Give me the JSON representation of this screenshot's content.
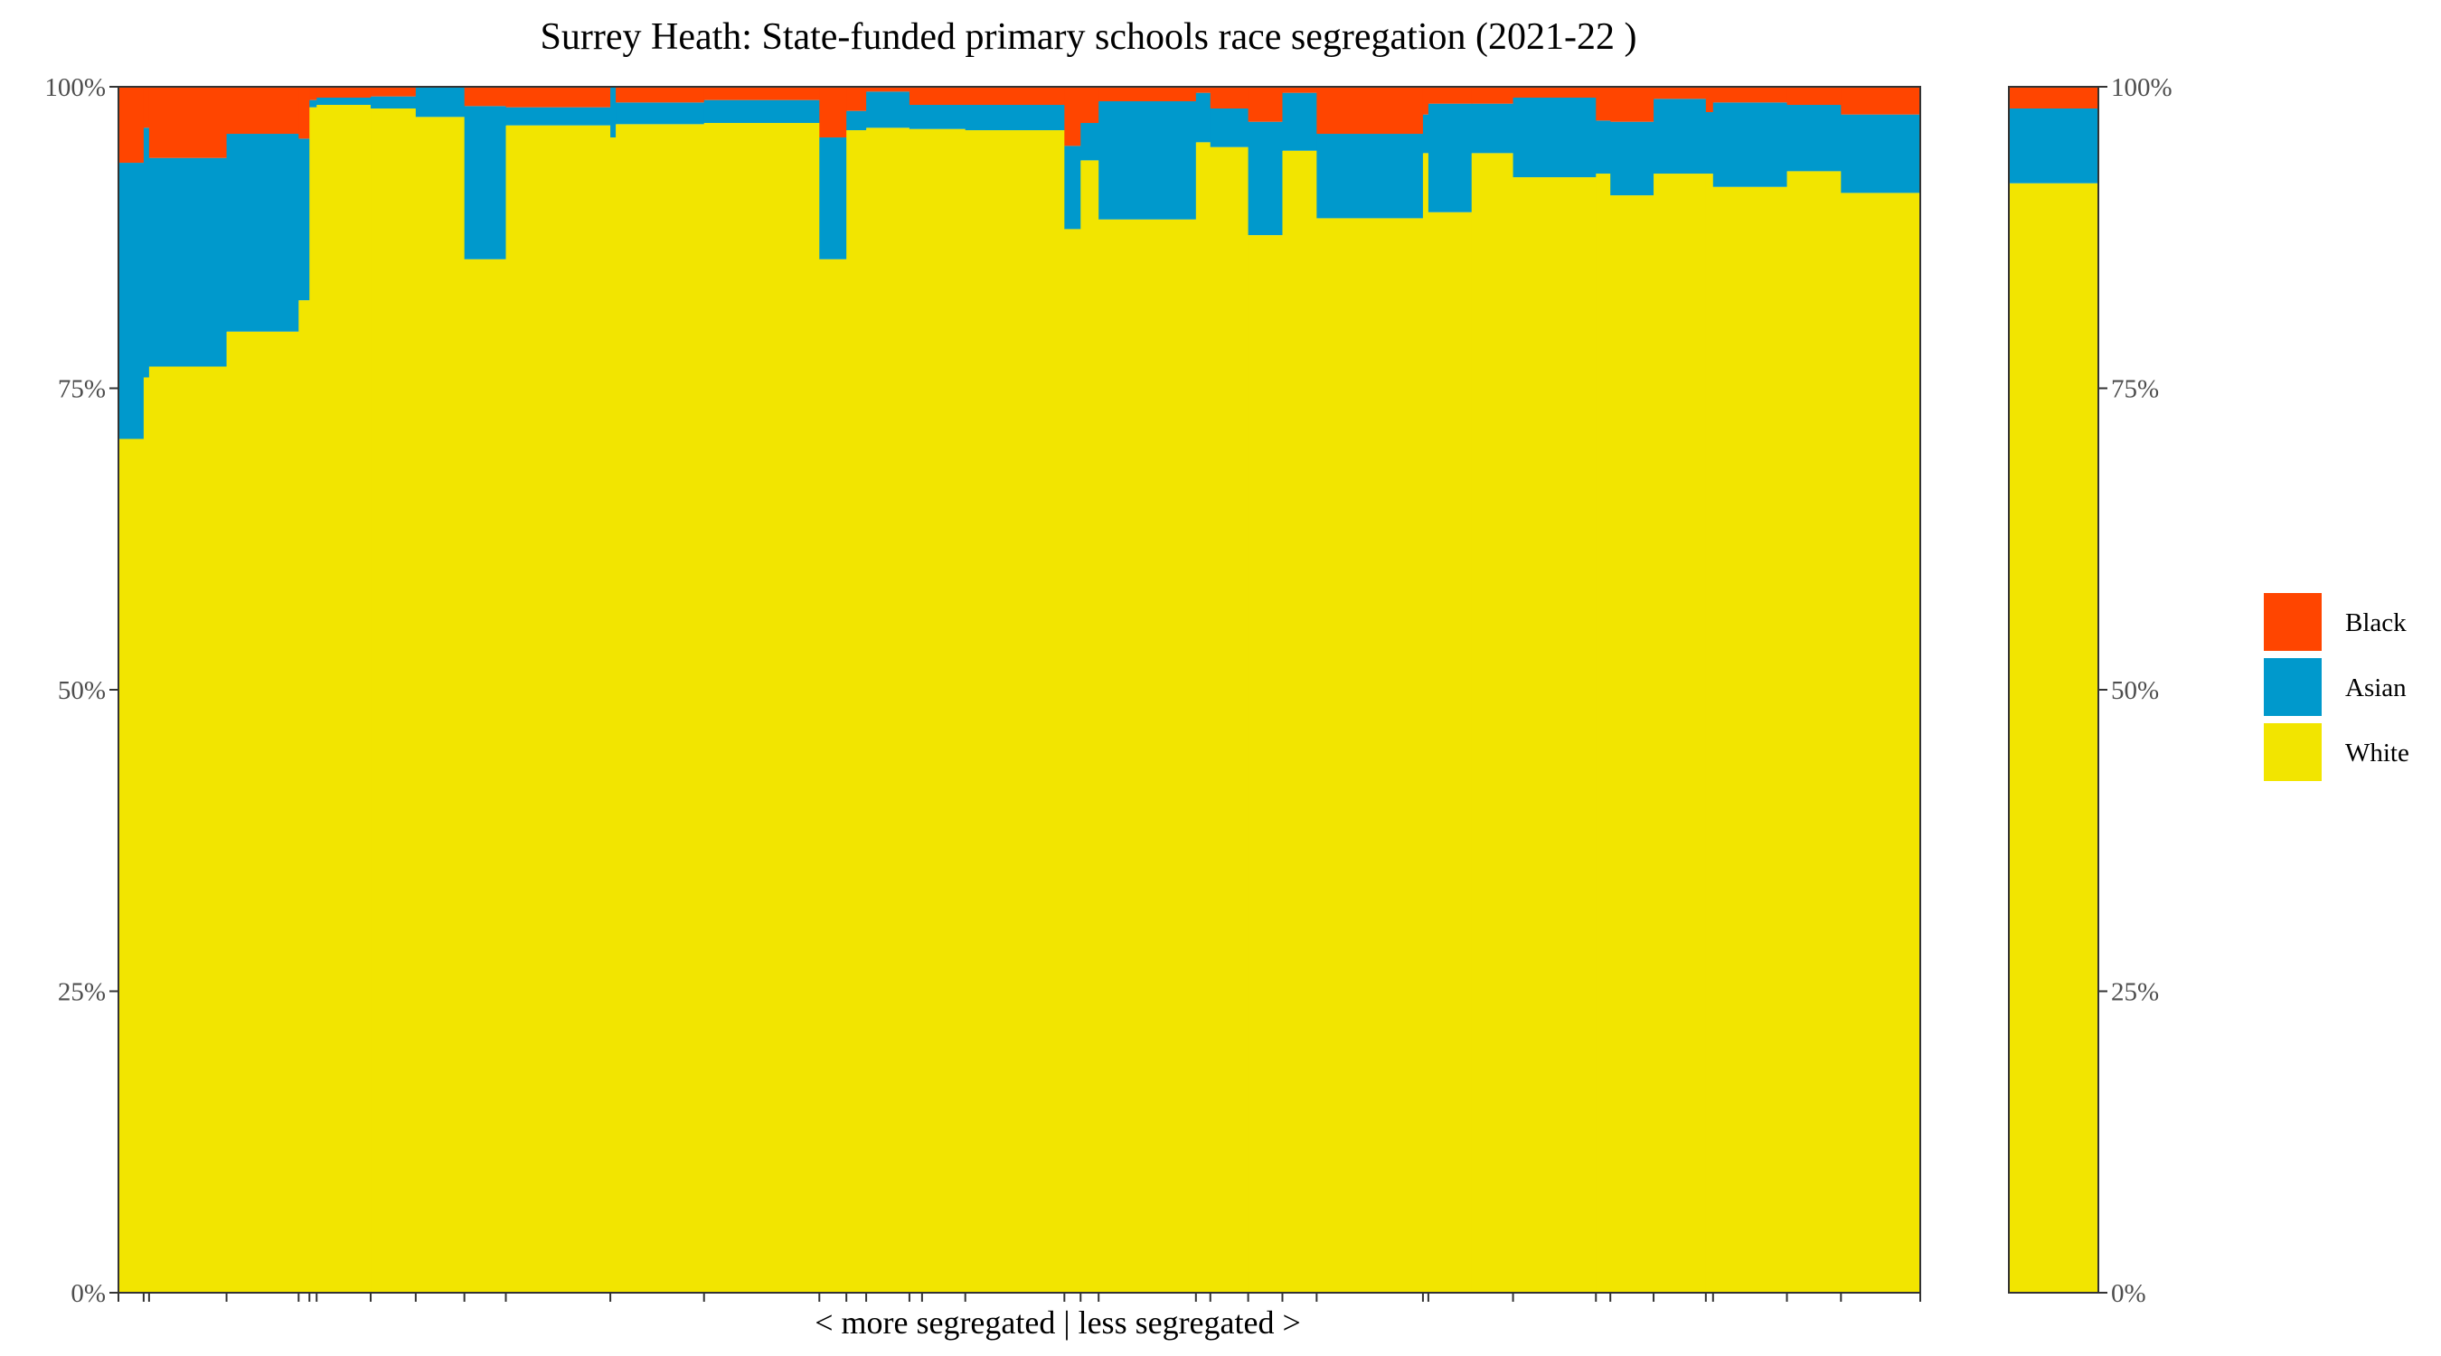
{
  "chart_data": {
    "type": "bar",
    "subtype": "stacked-variable-width-100-percent",
    "title": "Surrey Heath: State-funded primary schools race segregation (2021-22 )",
    "xlabel": "< more segregated | less segregated >",
    "ylabel": "",
    "ylim": [
      0,
      100
    ],
    "y_ticks": [
      "0%",
      "25%",
      "50%",
      "75%",
      "100%"
    ],
    "y_tick_values": [
      0,
      25,
      50,
      75,
      100
    ],
    "right_axis": true,
    "grid": false,
    "legend_position": "right",
    "colors": {
      "Black": "#FF4500",
      "Asian": "#0099CC",
      "White": "#F2E500"
    },
    "legend": [
      "Black",
      "Asian",
      "White"
    ],
    "stack_order": [
      "White",
      "Asian",
      "Black"
    ],
    "x_range": [
      0,
      100
    ],
    "series_note": "each bar: x start, x end (share of pupils, %), and White / Asian / Black percentages; remainder is unshaded",
    "bars": [
      {
        "x0": 0.0,
        "x1": 1.4,
        "White": 70.8,
        "Asian": 22.9,
        "Black": 6.3
      },
      {
        "x0": 1.4,
        "x1": 1.7,
        "White": 75.9,
        "Asian": 20.7,
        "Black": 3.4
      },
      {
        "x0": 1.7,
        "x1": 6.0,
        "White": 76.8,
        "Asian": 17.3,
        "Black": 5.9
      },
      {
        "x0": 6.0,
        "x1": 10.0,
        "White": 79.7,
        "Asian": 16.4,
        "Black": 3.9
      },
      {
        "x0": 10.0,
        "x1": 10.6,
        "White": 82.3,
        "Asian": 13.4,
        "Black": 4.3
      },
      {
        "x0": 10.6,
        "x1": 11.0,
        "White": 98.3,
        "Asian": 0.6,
        "Black": 1.1
      },
      {
        "x0": 11.0,
        "x1": 14.0,
        "White": 98.5,
        "Asian": 0.6,
        "Black": 0.9
      },
      {
        "x0": 14.0,
        "x1": 16.5,
        "White": 98.2,
        "Asian": 1.0,
        "Black": 0.8
      },
      {
        "x0": 16.5,
        "x1": 19.2,
        "White": 97.5,
        "Asian": 2.5,
        "Black": 0.0
      },
      {
        "x0": 19.2,
        "x1": 21.5,
        "White": 85.7,
        "Asian": 12.7,
        "Black": 1.6
      },
      {
        "x0": 21.5,
        "x1": 27.3,
        "White": 96.8,
        "Asian": 1.5,
        "Black": 1.7
      },
      {
        "x0": 27.3,
        "x1": 27.6,
        "White": 95.8,
        "Asian": 4.2,
        "Black": 0.0
      },
      {
        "x0": 27.6,
        "x1": 32.5,
        "White": 96.9,
        "Asian": 1.8,
        "Black": 1.3
      },
      {
        "x0": 32.5,
        "x1": 38.9,
        "White": 97.0,
        "Asian": 1.9,
        "Black": 1.1
      },
      {
        "x0": 38.9,
        "x1": 40.4,
        "White": 85.7,
        "Asian": 10.1,
        "Black": 4.2
      },
      {
        "x0": 40.4,
        "x1": 41.5,
        "White": 96.4,
        "Asian": 1.6,
        "Black": 2.0
      },
      {
        "x0": 41.5,
        "x1": 43.9,
        "White": 96.6,
        "Asian": 3.0,
        "Black": 0.4
      },
      {
        "x0": 43.9,
        "x1": 47.0,
        "White": 96.5,
        "Asian": 2.0,
        "Black": 1.5
      },
      {
        "x0": 47.0,
        "x1": 52.5,
        "White": 96.4,
        "Asian": 2.1,
        "Black": 1.5
      },
      {
        "x0": 52.5,
        "x1": 53.4,
        "White": 88.2,
        "Asian": 6.9,
        "Black": 4.9
      },
      {
        "x0": 53.4,
        "x1": 54.4,
        "White": 93.9,
        "Asian": 3.1,
        "Black": 3.0
      },
      {
        "x0": 54.4,
        "x1": 59.8,
        "White": 89.0,
        "Asian": 9.8,
        "Black": 1.2
      },
      {
        "x0": 59.8,
        "x1": 60.6,
        "White": 95.4,
        "Asian": 4.1,
        "Black": 0.5
      },
      {
        "x0": 60.6,
        "x1": 62.7,
        "White": 95.0,
        "Asian": 3.2,
        "Black": 1.8
      },
      {
        "x0": 62.7,
        "x1": 64.6,
        "White": 87.7,
        "Asian": 9.4,
        "Black": 2.9
      },
      {
        "x0": 64.6,
        "x1": 66.5,
        "White": 94.7,
        "Asian": 4.8,
        "Black": 0.5
      },
      {
        "x0": 66.5,
        "x1": 72.4,
        "White": 89.1,
        "Asian": 7.0,
        "Black": 3.9
      },
      {
        "x0": 72.4,
        "x1": 72.7,
        "White": 94.5,
        "Asian": 3.2,
        "Black": 2.3
      },
      {
        "x0": 72.7,
        "x1": 75.1,
        "White": 89.6,
        "Asian": 9.0,
        "Black": 1.4
      },
      {
        "x0": 75.1,
        "x1": 77.4,
        "White": 94.5,
        "Asian": 4.1,
        "Black": 1.4
      },
      {
        "x0": 77.4,
        "x1": 82.0,
        "White": 92.5,
        "Asian": 6.6,
        "Black": 0.9
      },
      {
        "x0": 82.0,
        "x1": 82.8,
        "White": 92.8,
        "Asian": 4.4,
        "Black": 2.8
      },
      {
        "x0": 82.8,
        "x1": 85.2,
        "White": 91.0,
        "Asian": 6.1,
        "Black": 2.9
      },
      {
        "x0": 85.2,
        "x1": 88.1,
        "White": 92.8,
        "Asian": 6.2,
        "Black": 1.0
      },
      {
        "x0": 88.1,
        "x1": 88.5,
        "White": 92.8,
        "Asian": 5.1,
        "Black": 2.1
      },
      {
        "x0": 88.5,
        "x1": 92.6,
        "White": 91.7,
        "Asian": 7.0,
        "Black": 1.3
      },
      {
        "x0": 92.6,
        "x1": 95.6,
        "White": 93.0,
        "Asian": 5.5,
        "Black": 1.5
      },
      {
        "x0": 95.6,
        "x1": 100.0,
        "White": 91.2,
        "Asian": 6.5,
        "Black": 2.3
      }
    ],
    "bottom_tick_positions": [
      0.0,
      1.4,
      1.7,
      6.0,
      10.0,
      10.6,
      11.0,
      14.0,
      16.5,
      19.2,
      21.5,
      27.3,
      32.5,
      38.9,
      40.4,
      41.5,
      43.9,
      44.6,
      47.0,
      52.5,
      53.4,
      54.4,
      59.8,
      60.6,
      62.7,
      64.6,
      66.5,
      72.4,
      72.7,
      77.4,
      82.0,
      82.8,
      85.2,
      88.1,
      88.5,
      92.6,
      95.6,
      100.0
    ],
    "overall_bar": {
      "White": 92.0,
      "Asian": 6.2,
      "Black": 1.8
    }
  }
}
